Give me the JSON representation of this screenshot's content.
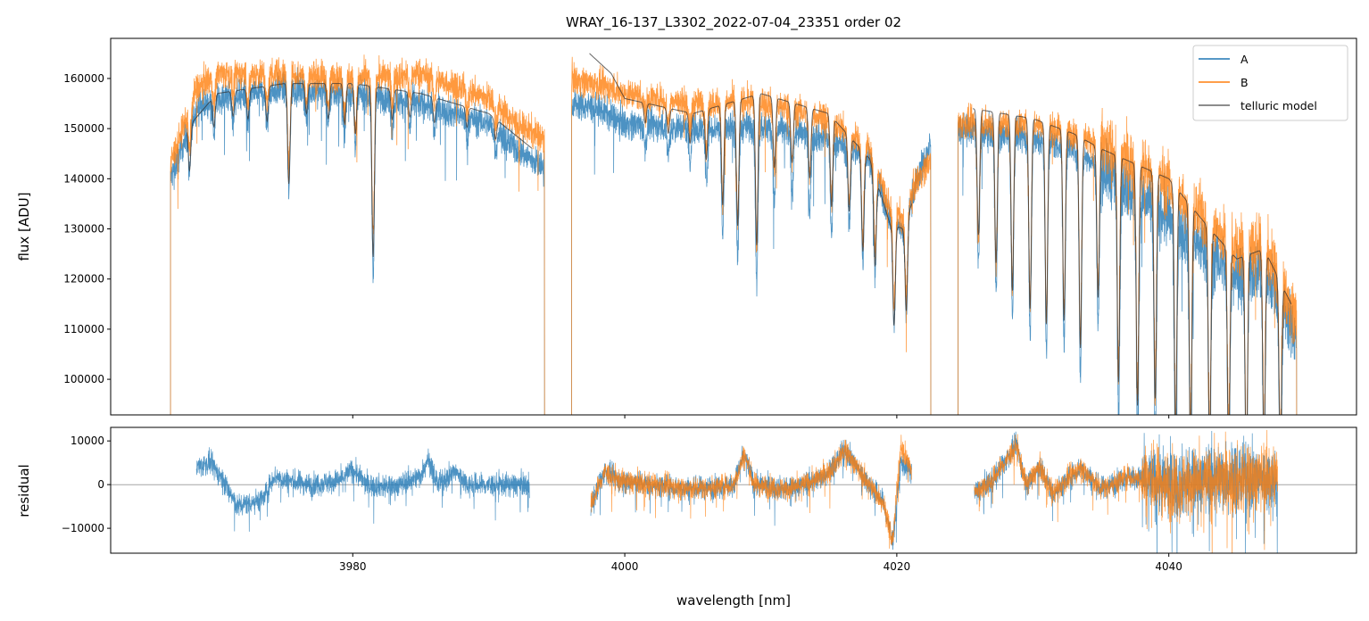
{
  "chart_data": [
    {
      "type": "line",
      "panel": "top",
      "title": "WRAY_16-137_L3302_2022-07-04_23351  order 02",
      "xlabel": "",
      "ylabel": "flux [ADU]",
      "xlim": [
        3962.2,
        4053.8
      ],
      "ylim": [
        92900,
        168000
      ],
      "xticks": [
        3980,
        4000,
        4020,
        4040
      ],
      "yticks": [
        100000,
        110000,
        120000,
        130000,
        140000,
        150000,
        160000
      ],
      "grid": false,
      "legend": {
        "placement": "top-right",
        "entries": [
          "A",
          "B",
          "telluric model"
        ]
      },
      "colors": {
        "A": "#1f77b4",
        "B": "#ff7f0e",
        "telluric model": "#333333"
      },
      "segments": [
        [
          3966.6,
          3994.1
        ],
        [
          3996.1,
          4022.5
        ],
        [
          4024.5,
          4049.4
        ]
      ],
      "model_segments": [
        [
          3967.8,
          3993.2
        ],
        [
          3997.4,
          4021.1
        ],
        [
          4025.6,
          4049.0
        ]
      ],
      "series": [
        {
          "name": "A",
          "continuum": [
            [
              3966.6,
              140000
            ],
            [
              3968.5,
              154000
            ],
            [
              3970,
              156000
            ],
            [
              3975,
              158000
            ],
            [
              3980,
              157000
            ],
            [
              3985,
              155000
            ],
            [
              3990,
              151000
            ],
            [
              3992,
              146000
            ],
            [
              3994.1,
              142000
            ],
            [
              3996.1,
              155000
            ],
            [
              3998,
              154000
            ],
            [
              4000,
              151000
            ],
            [
              4005,
              150000
            ],
            [
              4010,
              150500
            ],
            [
              4015,
              148000
            ],
            [
              4018,
              144000
            ],
            [
              4019.5,
              132000
            ],
            [
              4020.5,
              130000
            ],
            [
              4021.5,
              140000
            ],
            [
              4022.5,
              147000
            ],
            [
              4024.5,
              150000
            ],
            [
              4030,
              148000
            ],
            [
              4033,
              146000
            ],
            [
              4035,
              142000
            ],
            [
              4040,
              132000
            ],
            [
              4043,
              125000
            ],
            [
              4045,
              121000
            ],
            [
              4047,
              122000
            ],
            [
              4049.4,
              108000
            ]
          ]
        },
        {
          "name": "B",
          "continuum": [
            [
              3966.6,
              143000
            ],
            [
              3968.5,
              158000
            ],
            [
              3970,
              161000
            ],
            [
              3975,
              161000
            ],
            [
              3980,
              160000
            ],
            [
              3985,
              161000
            ],
            [
              3990,
              156000
            ],
            [
              3992,
              151000
            ],
            [
              3994.1,
              148000
            ],
            [
              3996.1,
              160000
            ],
            [
              3999,
              158000
            ],
            [
              4000,
              157000
            ],
            [
              4005,
              155000
            ],
            [
              4010,
              155500
            ],
            [
              4015,
              152000
            ],
            [
              4018,
              146000
            ],
            [
              4019.5,
              134000
            ],
            [
              4020.5,
              132000
            ],
            [
              4021.5,
              140000
            ],
            [
              4024.5,
              151000
            ],
            [
              4030,
              151000
            ],
            [
              4033,
              149000
            ],
            [
              4035,
              147000
            ],
            [
              4040,
              139000
            ],
            [
              4043,
              131000
            ],
            [
              4045,
              126000
            ],
            [
              4047,
              127000
            ],
            [
              4049.4,
              112000
            ]
          ]
        },
        {
          "name": "telluric model",
          "continuum": [
            [
              3967.8,
              150000
            ],
            [
              3970,
              157000
            ],
            [
              3975,
              159000
            ],
            [
              3980,
              159000
            ],
            [
              3985,
              157000
            ],
            [
              3990,
              153000
            ],
            [
              3993.2,
              146000
            ],
            [
              3997.4,
              165000
            ],
            [
              3999,
              161000
            ],
            [
              4000,
              156000
            ],
            [
              4005,
              153000
            ],
            [
              4010,
              157000
            ],
            [
              4015,
              153000
            ],
            [
              4018,
              144000
            ],
            [
              4019.5,
              131000
            ],
            [
              4020.5,
              130000
            ],
            [
              4021.1,
              135000
            ],
            [
              4025.6,
              154000
            ],
            [
              4030,
              152000
            ],
            [
              4033,
              149000
            ],
            [
              4035,
              146000
            ],
            [
              4040,
              140000
            ],
            [
              4043,
              130000
            ],
            [
              4045,
              124000
            ],
            [
              4047,
              126000
            ],
            [
              4049,
              115000
            ]
          ]
        }
      ],
      "telluric_lines": [
        {
          "w": 3968.0,
          "depth": 9000
        },
        {
          "w": 3969.8,
          "depth": 6000
        },
        {
          "w": 3971.2,
          "depth": 5000
        },
        {
          "w": 3972.3,
          "depth": 6000
        },
        {
          "w": 3973.7,
          "depth": 7000
        },
        {
          "w": 3975.3,
          "depth": 20000
        },
        {
          "w": 3976.6,
          "depth": 6000
        },
        {
          "w": 3978.2,
          "depth": 7000
        },
        {
          "w": 3979.4,
          "depth": 8000
        },
        {
          "w": 3980.2,
          "depth": 10000
        },
        {
          "w": 3981.5,
          "depth": 34000
        },
        {
          "w": 3982.9,
          "depth": 6000
        },
        {
          "w": 3984.2,
          "depth": 5000
        },
        {
          "w": 3986.0,
          "depth": 5000
        },
        {
          "w": 3988.4,
          "depth": 4000
        },
        {
          "w": 3990.5,
          "depth": 4000
        },
        {
          "w": 4001.5,
          "depth": 4000
        },
        {
          "w": 4003.2,
          "depth": 5000
        },
        {
          "w": 4004.8,
          "depth": 6000
        },
        {
          "w": 4006.0,
          "depth": 10000
        },
        {
          "w": 4007.2,
          "depth": 20000
        },
        {
          "w": 4008.3,
          "depth": 25000
        },
        {
          "w": 4009.7,
          "depth": 30000
        },
        {
          "w": 4011.0,
          "depth": 14000
        },
        {
          "w": 4012.3,
          "depth": 12000
        },
        {
          "w": 4013.6,
          "depth": 14000
        },
        {
          "w": 4015.2,
          "depth": 18000
        },
        {
          "w": 4016.5,
          "depth": 15000
        },
        {
          "w": 4017.5,
          "depth": 20000
        },
        {
          "w": 4018.4,
          "depth": 18000
        },
        {
          "w": 4019.8,
          "depth": 20000
        },
        {
          "w": 4020.7,
          "depth": 18000
        },
        {
          "w": 4026.0,
          "depth": 25000
        },
        {
          "w": 4027.3,
          "depth": 30000
        },
        {
          "w": 4028.5,
          "depth": 35000
        },
        {
          "w": 4029.8,
          "depth": 38000
        },
        {
          "w": 4031.0,
          "depth": 40000
        },
        {
          "w": 4032.3,
          "depth": 38000
        },
        {
          "w": 4033.5,
          "depth": 42000
        },
        {
          "w": 4034.8,
          "depth": 30000
        },
        {
          "w": 4036.3,
          "depth": 45000
        },
        {
          "w": 4037.7,
          "depth": 48000
        },
        {
          "w": 4039.0,
          "depth": 45000
        },
        {
          "w": 4040.5,
          "depth": 50000
        },
        {
          "w": 4041.6,
          "depth": 48000
        },
        {
          "w": 4043.0,
          "depth": 45000
        },
        {
          "w": 4044.4,
          "depth": 40000
        },
        {
          "w": 4045.7,
          "depth": 42000
        },
        {
          "w": 4047.0,
          "depth": 40000
        },
        {
          "w": 4048.2,
          "depth": 35000
        }
      ]
    },
    {
      "type": "line",
      "panel": "bottom",
      "xlabel": "wavelength [nm]",
      "ylabel": "residual",
      "xlim": [
        3962.2,
        4053.8
      ],
      "ylim": [
        -15700,
        13100
      ],
      "xticks": [
        3980,
        4000,
        4020,
        4040
      ],
      "yticks": [
        -10000,
        0,
        10000
      ],
      "zero_line": 0,
      "series": [
        {
          "name": "A",
          "segments": [
            [
              3968.5,
              3993.0
            ],
            [
              3997.5,
              4021.1
            ],
            [
              4025.7,
              4048.0
            ]
          ],
          "baseline": [
            [
              3968.5,
              4000
            ],
            [
              3969.5,
              5000
            ],
            [
              3970.5,
              1000
            ],
            [
              3971.5,
              -5000
            ],
            [
              3972.5,
              -4000
            ],
            [
              3973.5,
              -3000
            ],
            [
              3974.2,
              2000
            ],
            [
              3975,
              1000
            ],
            [
              3977,
              0
            ],
            [
              3979,
              1000
            ],
            [
              3980,
              3500
            ],
            [
              3981,
              0
            ],
            [
              3983,
              -500
            ],
            [
              3985,
              2000
            ],
            [
              3985.5,
              6000
            ],
            [
              3986.3,
              0
            ],
            [
              3987.5,
              3000
            ],
            [
              3988.5,
              0
            ],
            [
              3990,
              0
            ],
            [
              3993,
              0
            ],
            [
              3997.5,
              -5000
            ],
            [
              3998.5,
              3000
            ],
            [
              3999.5,
              1000
            ],
            [
              4002,
              0
            ],
            [
              4005,
              -1000
            ],
            [
              4008,
              0
            ],
            [
              4008.8,
              7000
            ],
            [
              4009.5,
              0
            ],
            [
              4012,
              -1000
            ],
            [
              4014,
              1000
            ],
            [
              4015,
              3000
            ],
            [
              4016.2,
              8000
            ],
            [
              4017.5,
              2000
            ],
            [
              4019,
              -4000
            ],
            [
              4019.7,
              -13000
            ],
            [
              4020.3,
              5000
            ],
            [
              4021.1,
              3000
            ],
            [
              4025.7,
              -2000
            ],
            [
              4027,
              1000
            ],
            [
              4028.8,
              9000
            ],
            [
              4029.5,
              0
            ],
            [
              4030.5,
              4000
            ],
            [
              4031.5,
              -2000
            ],
            [
              4033.5,
              4000
            ],
            [
              4035,
              -1000
            ],
            [
              4037,
              2000
            ],
            [
              4040,
              0
            ],
            [
              4044,
              2000
            ],
            [
              4048,
              1000
            ]
          ]
        },
        {
          "name": "B",
          "segments": [
            [
              3997.5,
              4021.1
            ],
            [
              4025.7,
              4048.0
            ]
          ],
          "baseline": [
            [
              3997.5,
              -5000
            ],
            [
              3998.5,
              3000
            ],
            [
              3999.5,
              1000
            ],
            [
              4002,
              0
            ],
            [
              4005,
              -1000
            ],
            [
              4008,
              0
            ],
            [
              4008.8,
              7000
            ],
            [
              4009.5,
              0
            ],
            [
              4012,
              -1000
            ],
            [
              4014,
              1000
            ],
            [
              4015,
              3000
            ],
            [
              4016.2,
              8000
            ],
            [
              4017.5,
              2000
            ],
            [
              4019,
              -4000
            ],
            [
              4019.7,
              -13000
            ],
            [
              4020.3,
              9000
            ],
            [
              4021.1,
              3000
            ],
            [
              4025.7,
              -2000
            ],
            [
              4027,
              1000
            ],
            [
              4028.8,
              9000
            ],
            [
              4029.5,
              0
            ],
            [
              4030.5,
              4000
            ],
            [
              4031.5,
              -2000
            ],
            [
              4033.5,
              4000
            ],
            [
              4035,
              -1000
            ],
            [
              4037,
              2000
            ],
            [
              4040,
              0
            ],
            [
              4044,
              1000
            ],
            [
              4048,
              2000
            ]
          ]
        }
      ]
    }
  ]
}
